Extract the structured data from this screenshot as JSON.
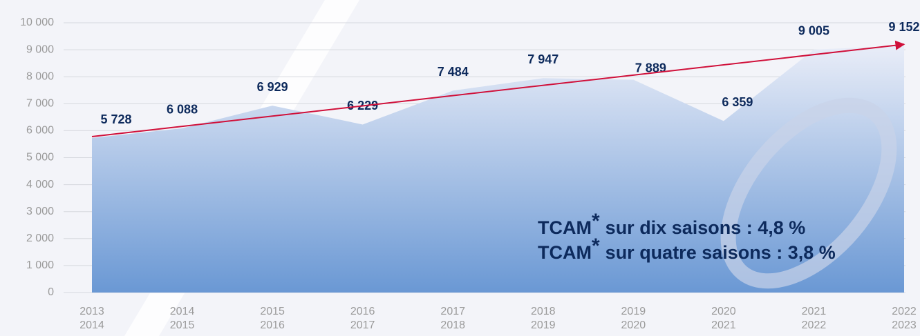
{
  "chart_data": {
    "type": "area",
    "categories": [
      [
        "2013",
        "2014"
      ],
      [
        "2014",
        "2015"
      ],
      [
        "2015",
        "2016"
      ],
      [
        "2016",
        "2017"
      ],
      [
        "2017",
        "2018"
      ],
      [
        "2018",
        "2019"
      ],
      [
        "2019",
        "2020"
      ],
      [
        "2020",
        "2021"
      ],
      [
        "2021",
        "2022"
      ],
      [
        "2022",
        "2023"
      ]
    ],
    "series": [
      {
        "color": "#6a98d4",
        "values": [
          5728,
          6088,
          6929,
          6229,
          7484,
          7947,
          7889,
          6359,
          9005,
          9152
        ],
        "value_labels": [
          "5 728",
          "6 088",
          "6 929",
          "6 229",
          "7 484",
          "7 947",
          "7 889",
          "6 359",
          "9 005",
          "9 152"
        ]
      }
    ],
    "ylim": [
      0,
      10000
    ],
    "yticks": [
      0,
      {
        "value": 1000,
        "label": "1 000"
      },
      {
        "value": 2000,
        "label": "2 000"
      },
      {
        "value": 3000,
        "label": "3 000"
      },
      {
        "value": 4000,
        "label": "4 000"
      },
      {
        "value": 5000,
        "label": "5 000"
      },
      {
        "value": 6000,
        "label": "6 000"
      },
      {
        "value": 7000,
        "label": "7 000"
      },
      {
        "value": 8000,
        "label": "8 000"
      },
      {
        "value": 9000,
        "label": "9 000"
      },
      {
        "value": 10000,
        "label": "10 000"
      }
    ],
    "grid": true,
    "trend": {
      "color": "#d0103a",
      "values": [
        5780,
        9200
      ]
    },
    "annotations": [
      {
        "text": "TCAM",
        "sup": "*",
        "rest": "sur dix saisons : 4,8 %"
      },
      {
        "text": "TCAM",
        "sup": "*",
        "rest": "sur quatre saisons : 3,8 %"
      }
    ]
  }
}
